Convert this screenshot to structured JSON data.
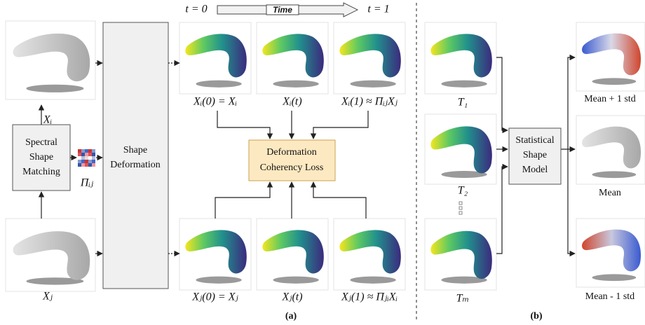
{
  "time_bar": {
    "start": "t = 0",
    "label": "Time",
    "end": "t = 1"
  },
  "panel_a": {
    "inputs": [
      "Xᵢ",
      "Xⱼ"
    ],
    "matching": [
      "Spectral",
      "Shape",
      "Matching"
    ],
    "correspondence": "Πᵢⱼ",
    "deformation": [
      "Shape",
      "Deformation"
    ],
    "top_row": [
      "Xᵢ(0) = Xᵢ",
      "Xᵢ(t)",
      "Xᵢ(1) ≈ ΠᵢⱼXⱼ"
    ],
    "bottom_row": [
      "Xⱼ(0) = Xⱼ",
      "Xⱼ(t)",
      "Xⱼ(1) ≈ ΠⱼᵢXᵢ"
    ],
    "loss": [
      "Deformation",
      "Coherency Loss"
    ],
    "caption": "(a)"
  },
  "panel_b": {
    "templates": [
      "T₁",
      "T₂",
      "Tₘ"
    ],
    "model": [
      "Statistical",
      "Shape",
      "Model"
    ],
    "outputs": [
      "Mean + 1 std",
      "Mean",
      "Mean - 1 std"
    ],
    "caption": "(b)"
  }
}
